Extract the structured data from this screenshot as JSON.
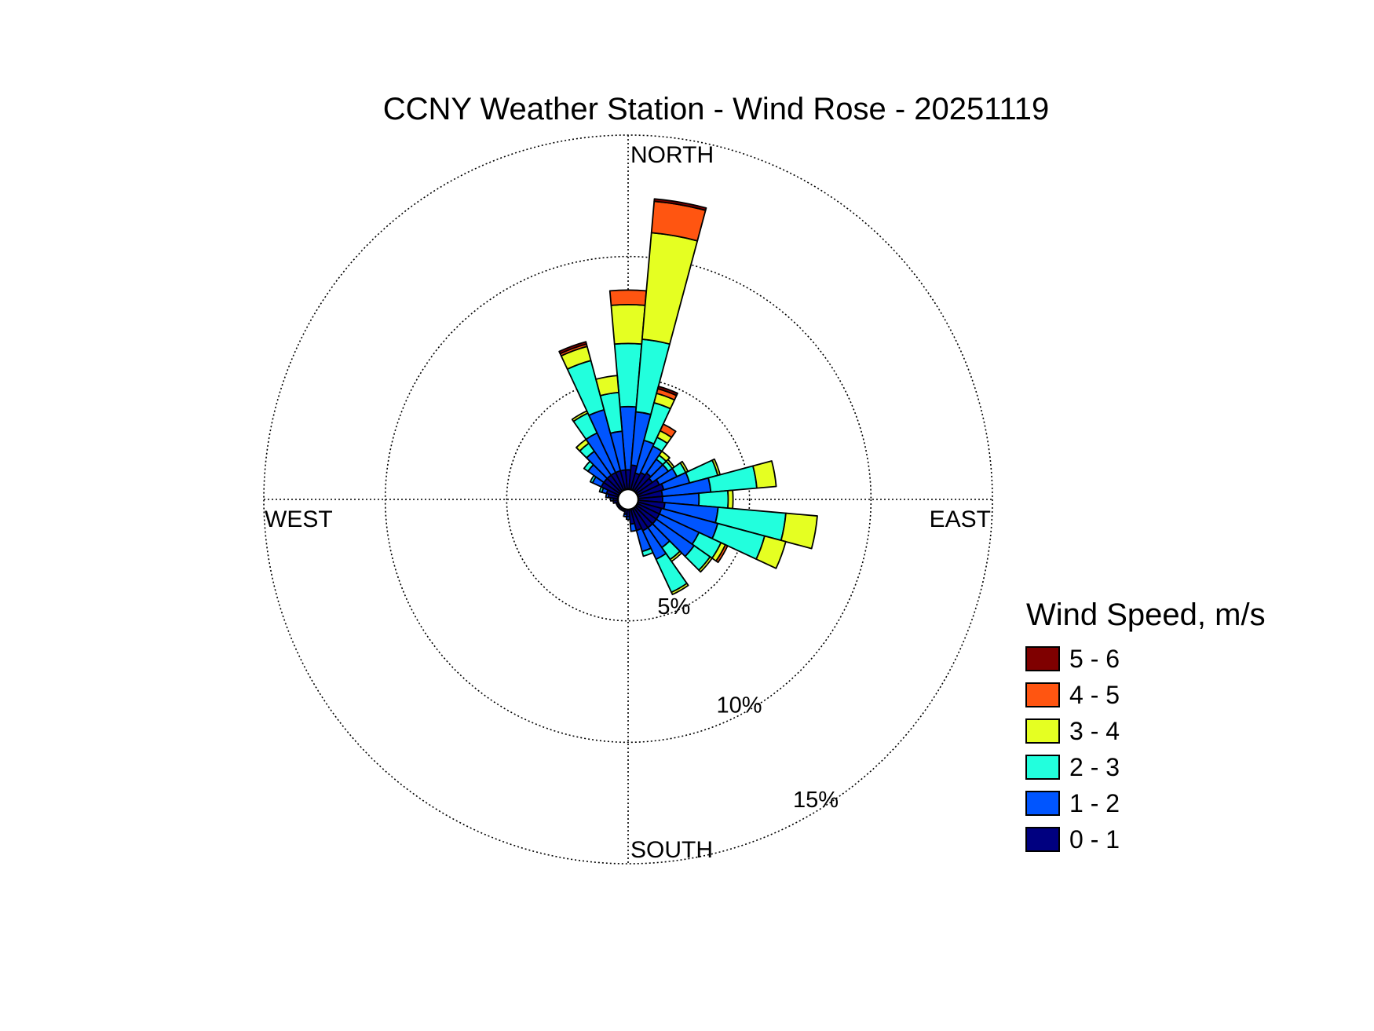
{
  "chart_data": {
    "type": "windrose",
    "title": "CCNY Weather Station - Wind Rose - 20251119",
    "directions": {
      "north": "NORTH",
      "south": "SOUTH",
      "east": "EAST",
      "west": "WEST"
    },
    "ring_labels": [
      "5%",
      "10%",
      "15%"
    ],
    "ring_values": [
      5,
      10,
      15
    ],
    "rmax": 15.5,
    "grid": true,
    "sector_width_deg": 10,
    "legend": {
      "title": "Wind Speed, m/s",
      "position": "right",
      "bins": [
        "5 - 6",
        "4 - 5",
        "3 - 4",
        "2 - 3",
        "1 - 2",
        "0 - 1"
      ]
    },
    "colors": {
      "0 - 1": "#000080",
      "1 - 2": "#0055ff",
      "2 - 3": "#22ffdd",
      "3 - 4": "#e5ff22",
      "4 - 5": "#ff5511",
      "5 - 6": "#7f0000"
    },
    "bin_order": [
      "0 - 1",
      "1 - 2",
      "2 - 3",
      "3 - 4",
      "4 - 5",
      "5 - 6"
    ],
    "sectors": [
      {
        "dir": 0,
        "values": [
          0.8,
          2.6,
          2.6,
          1.6,
          0.6,
          0.0
        ]
      },
      {
        "dir": 10,
        "values": [
          1.0,
          2.2,
          3.0,
          4.4,
          1.3,
          0.1
        ]
      },
      {
        "dir": 20,
        "values": [
          0.7,
          1.4,
          1.6,
          0.4,
          0.2,
          0.1
        ]
      },
      {
        "dir": 30,
        "values": [
          0.8,
          1.2,
          0.4,
          0.3,
          0.3,
          0.0
        ]
      },
      {
        "dir": 40,
        "values": [
          0.9,
          0.7,
          0.2,
          0.2,
          0.0,
          0.0
        ]
      },
      {
        "dir": 50,
        "values": [
          0.8,
          0.8,
          0.2,
          0.1,
          0.0,
          0.0
        ]
      },
      {
        "dir": 60,
        "values": [
          1.0,
          0.8,
          0.4,
          0.1,
          0.0,
          0.0
        ]
      },
      {
        "dir": 70,
        "values": [
          1.1,
          1.1,
          1.2,
          0.1,
          0.0,
          0.0
        ]
      },
      {
        "dir": 80,
        "values": [
          1.0,
          2.0,
          1.9,
          0.8,
          0.0,
          0.0
        ]
      },
      {
        "dir": 90,
        "values": [
          1.0,
          1.5,
          1.2,
          0.2,
          0.0,
          0.0
        ]
      },
      {
        "dir": 100,
        "values": [
          1.1,
          2.2,
          2.8,
          1.3,
          0.0,
          0.0
        ]
      },
      {
        "dir": 110,
        "values": [
          1.0,
          2.4,
          2.0,
          0.9,
          0.0,
          0.0
        ]
      },
      {
        "dir": 120,
        "values": [
          1.0,
          1.8,
          1.0,
          0.2,
          0.1,
          0.0
        ]
      },
      {
        "dir": 130,
        "values": [
          1.0,
          1.9,
          0.8,
          0.1,
          0.0,
          0.0
        ]
      },
      {
        "dir": 140,
        "values": [
          1.0,
          1.0,
          0.6,
          0.1,
          0.0,
          0.0
        ]
      },
      {
        "dir": 150,
        "values": [
          1.0,
          1.3,
          1.5,
          0.1,
          0.0,
          0.0
        ]
      },
      {
        "dir": 160,
        "values": [
          0.9,
          0.9,
          0.2,
          0.0,
          0.0,
          0.0
        ]
      },
      {
        "dir": 170,
        "values": [
          0.6,
          0.3,
          0.0,
          0.0,
          0.0,
          0.0
        ]
      },
      {
        "dir": 180,
        "values": [
          0.3,
          0.1,
          0.0,
          0.0,
          0.0,
          0.0
        ]
      },
      {
        "dir": 190,
        "values": [
          0.2,
          0.1,
          0.0,
          0.0,
          0.0,
          0.0
        ]
      },
      {
        "dir": 200,
        "values": [
          0.1,
          0.0,
          0.0,
          0.0,
          0.0,
          0.0
        ]
      },
      {
        "dir": 210,
        "values": [
          0.1,
          0.0,
          0.0,
          0.0,
          0.0,
          0.0
        ]
      },
      {
        "dir": 220,
        "values": [
          0.1,
          0.0,
          0.0,
          0.0,
          0.0,
          0.0
        ]
      },
      {
        "dir": 230,
        "values": [
          0.1,
          0.0,
          0.0,
          0.0,
          0.0,
          0.0
        ]
      },
      {
        "dir": 240,
        "values": [
          0.1,
          0.0,
          0.0,
          0.0,
          0.0,
          0.0
        ]
      },
      {
        "dir": 250,
        "values": [
          0.1,
          0.0,
          0.0,
          0.0,
          0.0,
          0.0
        ]
      },
      {
        "dir": 260,
        "values": [
          0.2,
          0.0,
          0.0,
          0.0,
          0.0,
          0.0
        ]
      },
      {
        "dir": 270,
        "values": [
          0.2,
          0.1,
          0.0,
          0.0,
          0.0,
          0.0
        ]
      },
      {
        "dir": 280,
        "values": [
          0.4,
          0.1,
          0.0,
          0.0,
          0.0,
          0.0
        ]
      },
      {
        "dir": 290,
        "values": [
          0.5,
          0.2,
          0.1,
          0.0,
          0.0,
          0.0
        ]
      },
      {
        "dir": 300,
        "values": [
          0.8,
          0.4,
          0.1,
          0.0,
          0.0,
          0.0
        ]
      },
      {
        "dir": 310,
        "values": [
          0.8,
          0.8,
          0.2,
          0.0,
          0.0,
          0.0
        ]
      },
      {
        "dir": 320,
        "values": [
          0.8,
          1.2,
          0.4,
          0.2,
          0.0,
          0.0
        ]
      },
      {
        "dir": 330,
        "values": [
          0.8,
          1.8,
          0.9,
          0.1,
          0.0,
          0.0
        ]
      },
      {
        "dir": 340,
        "values": [
          0.8,
          2.6,
          2.1,
          0.6,
          0.1,
          0.1
        ]
      },
      {
        "dir": 350,
        "values": [
          0.8,
          1.6,
          1.6,
          0.7,
          0.0,
          0.0
        ]
      }
    ]
  }
}
